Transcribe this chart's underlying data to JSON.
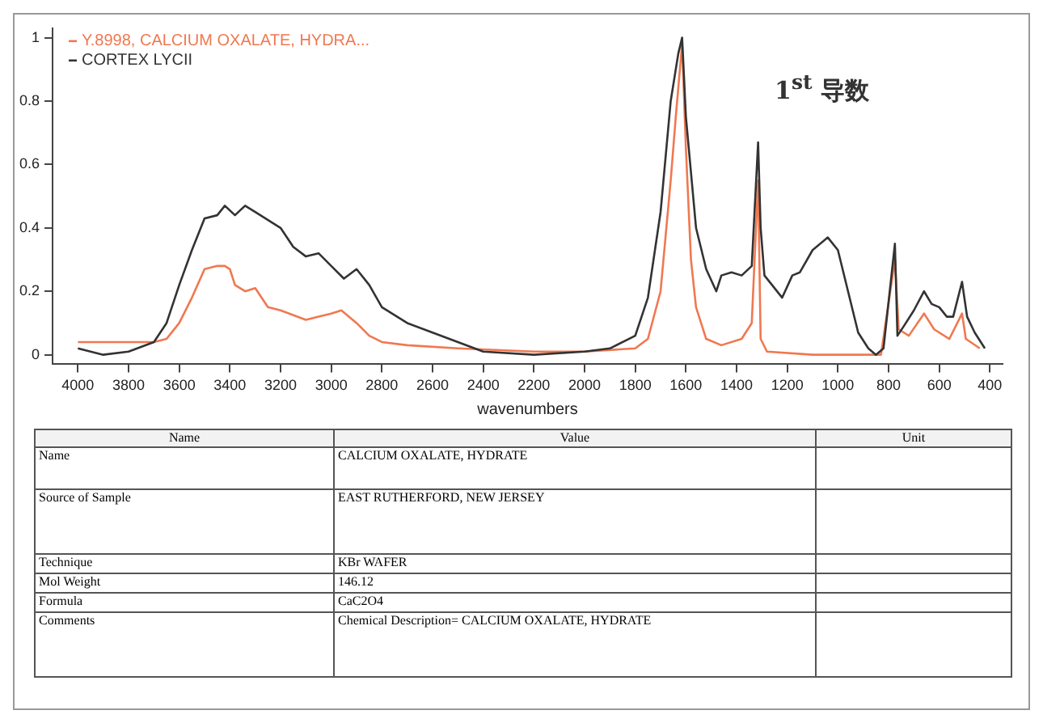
{
  "chart_data": {
    "type": "line",
    "title": "1$^{st}$ 导数",
    "xlabel": "wavenumbers",
    "xlim": [
      4100,
      350
    ],
    "xticks": [
      4000,
      3800,
      3600,
      3400,
      3200,
      3000,
      2800,
      2600,
      2400,
      2200,
      2000,
      1800,
      1600,
      1400,
      1200,
      1000,
      800,
      600,
      400
    ],
    "ylim": [
      -0.03,
      1.03
    ],
    "yticks": [
      0,
      0.2,
      0.4,
      0.6,
      0.8,
      1
    ],
    "grid": false,
    "legend": "top left",
    "marker": "none",
    "line_style": "solid",
    "series": [
      {
        "name": "Y.8998, CALCIUM OXALATE, HYDRA...",
        "color": "#f07850",
        "x": [
          4000,
          3700,
          3650,
          3600,
          3550,
          3500,
          3450,
          3420,
          3400,
          3380,
          3340,
          3300,
          3250,
          3200,
          3100,
          3050,
          3000,
          2960,
          2900,
          2850,
          2800,
          2700,
          2500,
          2200,
          2000,
          1800,
          1750,
          1700,
          1660,
          1640,
          1615,
          1600,
          1580,
          1560,
          1520,
          1460,
          1380,
          1340,
          1315,
          1305,
          1280,
          1100,
          900,
          830,
          775,
          760,
          720,
          660,
          620,
          560,
          510,
          495,
          440
        ],
        "values": [
          0.04,
          0.04,
          0.05,
          0.1,
          0.18,
          0.27,
          0.28,
          0.28,
          0.27,
          0.22,
          0.2,
          0.21,
          0.15,
          0.14,
          0.11,
          0.12,
          0.13,
          0.14,
          0.1,
          0.06,
          0.04,
          0.03,
          0.02,
          0.01,
          0.01,
          0.02,
          0.05,
          0.2,
          0.55,
          0.75,
          0.98,
          0.65,
          0.3,
          0.15,
          0.05,
          0.03,
          0.05,
          0.1,
          0.55,
          0.05,
          0.01,
          0.0,
          0.0,
          0.0,
          0.3,
          0.08,
          0.06,
          0.13,
          0.08,
          0.05,
          0.13,
          0.05,
          0.02
        ]
      },
      {
        "name": "CORTEX LYCII",
        "color": "#333333",
        "x": [
          4000,
          3900,
          3800,
          3700,
          3650,
          3600,
          3550,
          3500,
          3450,
          3420,
          3380,
          3340,
          3300,
          3200,
          3150,
          3100,
          3050,
          3000,
          2950,
          2900,
          2850,
          2800,
          2700,
          2600,
          2500,
          2400,
          2200,
          2000,
          1900,
          1800,
          1750,
          1700,
          1660,
          1630,
          1615,
          1600,
          1560,
          1520,
          1480,
          1460,
          1420,
          1380,
          1340,
          1315,
          1305,
          1290,
          1260,
          1220,
          1180,
          1150,
          1100,
          1040,
          1000,
          960,
          920,
          880,
          850,
          820,
          775,
          765,
          740,
          700,
          660,
          630,
          600,
          570,
          545,
          510,
          490,
          460,
          420
        ],
        "values": [
          0.02,
          0.0,
          0.01,
          0.04,
          0.1,
          0.22,
          0.33,
          0.43,
          0.44,
          0.47,
          0.44,
          0.47,
          0.45,
          0.4,
          0.34,
          0.31,
          0.32,
          0.28,
          0.24,
          0.27,
          0.22,
          0.15,
          0.1,
          0.07,
          0.04,
          0.01,
          0.0,
          0.01,
          0.02,
          0.06,
          0.18,
          0.45,
          0.8,
          0.95,
          1.0,
          0.75,
          0.4,
          0.27,
          0.2,
          0.25,
          0.26,
          0.25,
          0.28,
          0.67,
          0.4,
          0.25,
          0.22,
          0.18,
          0.25,
          0.26,
          0.33,
          0.37,
          0.33,
          0.2,
          0.07,
          0.02,
          0.0,
          0.02,
          0.35,
          0.06,
          0.09,
          0.14,
          0.2,
          0.16,
          0.15,
          0.12,
          0.12,
          0.23,
          0.12,
          0.07,
          0.02
        ]
      }
    ],
    "annotations": [
      "Name",
      "Value",
      "Unit",
      "Name",
      "CALCIUM OXALATE, HYDRATE",
      "Source of Sample",
      "EAST RUTHERFORD, NEW JERSEY",
      "Technique",
      "KBr WAFER",
      "Mol Weight",
      "146.12",
      "Formula",
      "CaC2O4",
      "Comments",
      "Chemical Description= CALCIUM OXALATE, HYDRATE"
    ]
  }
}
